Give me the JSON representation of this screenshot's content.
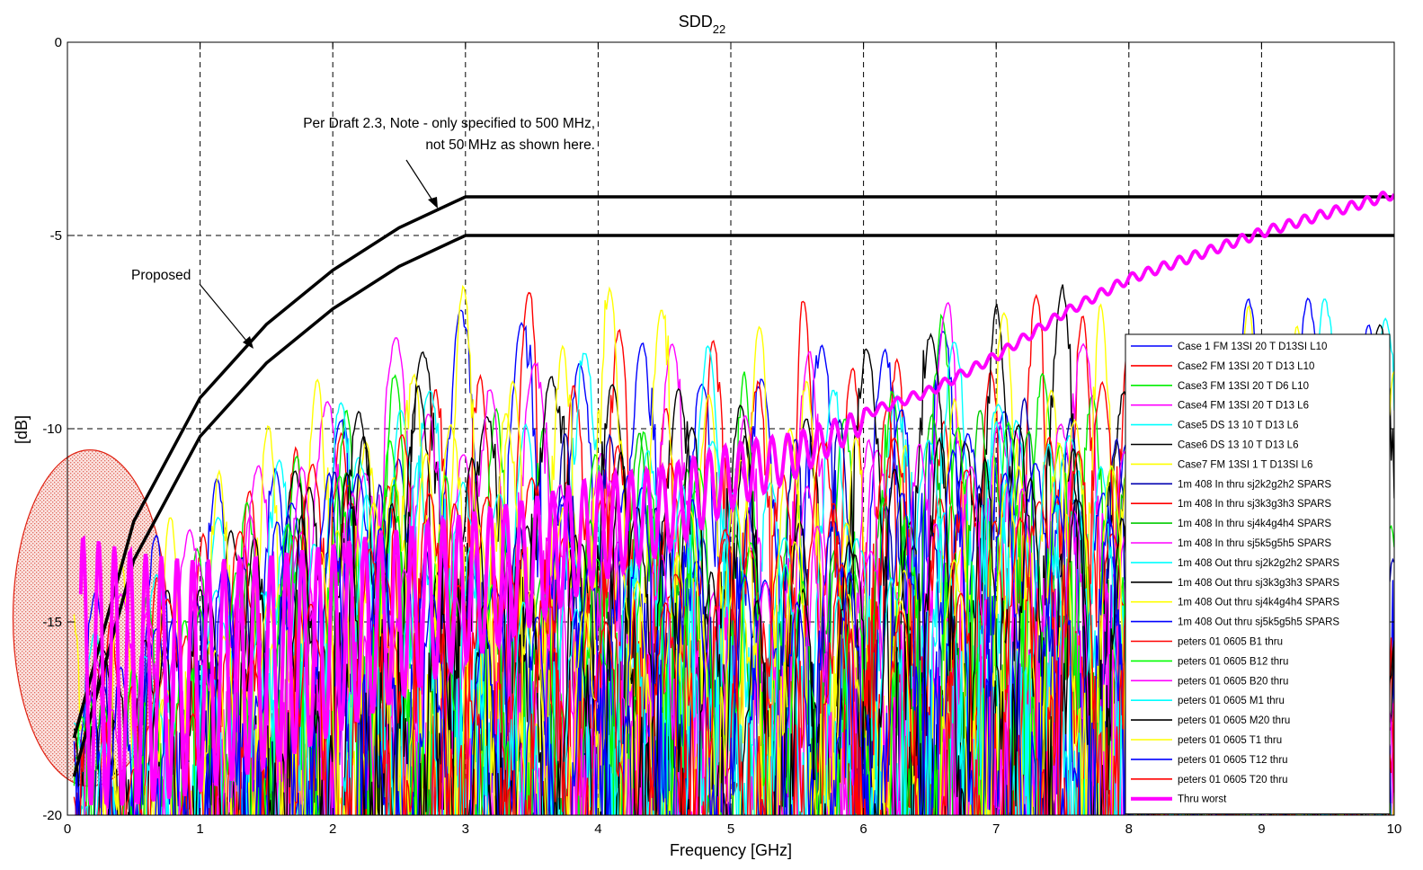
{
  "chart_data": {
    "type": "line",
    "title": "SDD",
    "title_subscript": "22",
    "xlabel": "Frequency [GHz]",
    "ylabel": "[dB]",
    "xlim": [
      0,
      10
    ],
    "ylim": [
      -20,
      0
    ],
    "xticks": [
      "0",
      "1",
      "2",
      "3",
      "4",
      "5",
      "6",
      "7",
      "8",
      "9",
      "10"
    ],
    "yticks": [
      "0",
      "-5",
      "-10",
      "-15",
      "-20"
    ],
    "grid": true,
    "legend_position": "bottom-right",
    "annotations": {
      "draft_note_line1": "Per Draft 2.3, Note - only specified to 500 MHz,",
      "draft_note_line2": "not 50 MHz as shown here.",
      "proposed": "Proposed"
    },
    "limit_lines": [
      {
        "label": "Per Draft 2.3",
        "color": "#000000",
        "points": [
          [
            0.05,
            -18.0
          ],
          [
            0.5,
            -12.4
          ],
          [
            1.0,
            -9.2
          ],
          [
            1.5,
            -7.3
          ],
          [
            2.0,
            -5.9
          ],
          [
            2.5,
            -4.8
          ],
          [
            3.0,
            -4.0
          ],
          [
            10.0,
            -4.0
          ]
        ]
      },
      {
        "label": "Proposed",
        "color": "#000000",
        "points": [
          [
            0.05,
            -19.0
          ],
          [
            0.5,
            -13.4
          ],
          [
            1.0,
            -10.2
          ],
          [
            1.5,
            -8.3
          ],
          [
            2.0,
            -6.9
          ],
          [
            2.5,
            -5.8
          ],
          [
            3.0,
            -5.0
          ],
          [
            10.0,
            -5.0
          ]
        ]
      }
    ],
    "highlight_region": {
      "center": [
        0.17,
        -14.9
      ],
      "radius": [
        0.58,
        4.35
      ],
      "color": "#e02010"
    },
    "series": [
      {
        "name": "Case 1  FM 13SI 20 T D13SI L10",
        "color": "#0000ff",
        "peaks": [
          [
            1.5,
            -10.1
          ],
          [
            2.1,
            -8.9
          ],
          [
            3.03,
            -5.9
          ],
          [
            3.53,
            -5.2
          ],
          [
            4.53,
            -6.0
          ],
          [
            5.03,
            -5.9
          ],
          [
            5.53,
            -6.0
          ],
          [
            6.33,
            -6.0
          ],
          [
            9.0,
            -6.1
          ]
        ]
      },
      {
        "name": "Case2 FM 13SI 20 T D13 L10",
        "color": "#ff0000",
        "peaks": [
          [
            2.0,
            -9.6
          ],
          [
            2.95,
            -6.6
          ],
          [
            3.52,
            -5.6
          ],
          [
            4.05,
            -6.3
          ],
          [
            5.02,
            -6.1
          ],
          [
            5.52,
            -6.1
          ],
          [
            6.05,
            -6.4
          ],
          [
            7.2,
            -6.4
          ]
        ]
      },
      {
        "name": "Case3 FM 13SI 20 T D6 L10",
        "color": "#00ee00",
        "peaks": [
          [
            2.45,
            -8.4
          ],
          [
            3.4,
            -7.6
          ],
          [
            4.2,
            -8.5
          ],
          [
            5.1,
            -8.5
          ],
          [
            6.1,
            -7.1
          ],
          [
            6.55,
            -6.4
          ],
          [
            7.3,
            -8.5
          ]
        ]
      },
      {
        "name": "Case4 FM 13SI 20 T D13 L6",
        "color": "#ff00ff",
        "peaks": [
          [
            2.55,
            -7.4
          ],
          [
            3.6,
            -7.5
          ],
          [
            4.6,
            -7.3
          ],
          [
            5.6,
            -7.9
          ],
          [
            6.65,
            -6.5
          ],
          [
            7.45,
            -7.5
          ]
        ]
      },
      {
        "name": "Case5 DS 13 10 T D13 L6",
        "color": "#00ffff",
        "peaks": [
          [
            2.35,
            -8.4
          ],
          [
            3.81,
            -7.0
          ],
          [
            4.81,
            -7.6
          ],
          [
            5.81,
            -8.6
          ],
          [
            6.4,
            -6.3
          ],
          [
            9.5,
            -6.5
          ]
        ]
      },
      {
        "name": "Case6 DS 13 10 T D13 L6",
        "color": "#000000",
        "peaks": [
          [
            2.9,
            -7.3
          ],
          [
            3.38,
            -6.4
          ],
          [
            3.81,
            -5.7
          ],
          [
            4.81,
            -7.3
          ],
          [
            5.95,
            -6.5
          ],
          [
            6.45,
            -6.5
          ],
          [
            7.0,
            -6.7
          ],
          [
            7.5,
            -6.2
          ],
          [
            9.55,
            -6.8
          ]
        ]
      },
      {
        "name": "Case7 FM 13SI 1 T D13SI L6",
        "color": "#ffff00",
        "peaks": [
          [
            2.05,
            -8.2
          ],
          [
            2.5,
            -6.7
          ],
          [
            2.95,
            -6.0
          ],
          [
            4.02,
            -5.1
          ],
          [
            4.55,
            -5.7
          ],
          [
            5.25,
            -6.9
          ],
          [
            7.2,
            -6.0
          ],
          [
            7.78,
            -6.7
          ],
          [
            8.9,
            -6.8
          ]
        ]
      },
      {
        "name": "1m 408 In thru sj2k2g2h2 SPARS",
        "color": "#0000b0",
        "peaks": [
          [
            2.2,
            -10.5
          ],
          [
            3.9,
            -8.9
          ],
          [
            5.7,
            -8.8
          ],
          [
            7.2,
            -9.2
          ]
        ]
      },
      {
        "name": "1m 408 In thru sj3k3g3h3 SPARS",
        "color": "#ff0000",
        "peaks": [
          [
            2.6,
            -9.9
          ],
          [
            4.3,
            -9.3
          ],
          [
            6.2,
            -9.3
          ],
          [
            7.6,
            -8.5
          ]
        ]
      },
      {
        "name": "1m 408 In thru sj4k4g4h4 SPARS",
        "color": "#00cc00",
        "peaks": [
          [
            2.3,
            -10.5
          ],
          [
            4.4,
            -9.5
          ],
          [
            6.6,
            -9.1
          ]
        ]
      },
      {
        "name": "1m 408 In thru sj5k5g5h5 SPARS",
        "color": "#ff00ff",
        "peaks": [
          [
            3.1,
            -8.4
          ],
          [
            5.2,
            -9.1
          ],
          [
            7.1,
            -9.3
          ]
        ]
      },
      {
        "name": "1m 408 Out thru sj2k2g2h2 SPARS",
        "color": "#00ffff",
        "peaks": [
          [
            2.8,
            -8.8
          ],
          [
            4.7,
            -9.3
          ],
          [
            6.7,
            -8.9
          ]
        ]
      },
      {
        "name": "1m 408 Out thru sj3k3g3h3 SPARS",
        "color": "#000000",
        "peaks": [
          [
            2.7,
            -8.7
          ],
          [
            4.9,
            -8.8
          ],
          [
            6.9,
            -9.5
          ]
        ]
      },
      {
        "name": "1m 408 Out thru sj4k4g4h4 SPARS",
        "color": "#ffff00",
        "peaks": [
          [
            3.2,
            -8.9
          ],
          [
            5.4,
            -9.7
          ],
          [
            7.4,
            -9.5
          ]
        ]
      },
      {
        "name": "1m 408 Out thru sj5k5g5h5 SPARS",
        "color": "#0000ff",
        "peaks": [
          [
            2.1,
            -10.6
          ],
          [
            4.0,
            -9.9
          ],
          [
            6.3,
            -9.4
          ]
        ]
      },
      {
        "name": "peters 01 0605 B1 thru",
        "color": "#ff0000",
        "peaks": [
          [
            1.85,
            -10.9
          ],
          [
            3.7,
            -9.8
          ],
          [
            5.8,
            -9.6
          ]
        ]
      },
      {
        "name": "peters 01 0605 B12 thru",
        "color": "#00ff00",
        "peaks": [
          [
            2.4,
            -10.1
          ],
          [
            4.6,
            -10.1
          ],
          [
            6.8,
            -9.4
          ]
        ]
      },
      {
        "name": "peters 01 0605 B20 thru",
        "color": "#ff00ff",
        "peaks": [
          [
            1.95,
            -10.4
          ],
          [
            3.9,
            -10.2
          ],
          [
            6.1,
            -9.9
          ]
        ]
      },
      {
        "name": "peters 01 0605 M1 thru",
        "color": "#00ffff",
        "peaks": [
          [
            2.6,
            -10.6
          ],
          [
            4.8,
            -10.4
          ],
          [
            7.0,
            -9.8
          ]
        ]
      },
      {
        "name": "peters 01 0605 M20 thru",
        "color": "#000000",
        "peaks": [
          [
            2.25,
            -10.7
          ],
          [
            4.2,
            -10.4
          ],
          [
            6.4,
            -10.0
          ]
        ]
      },
      {
        "name": "peters 01 0605 T1 thru",
        "color": "#ffff00",
        "peaks": [
          [
            2.75,
            -10.5
          ],
          [
            5.0,
            -10.3
          ],
          [
            7.3,
            -10.1
          ]
        ]
      },
      {
        "name": "peters 01 0605 T12 thru",
        "color": "#0000ff",
        "peaks": [
          [
            2.05,
            -10.9
          ],
          [
            4.5,
            -10.5
          ],
          [
            6.5,
            -10.3
          ]
        ]
      },
      {
        "name": "peters 01 0605 T20 thru",
        "color": "#ff0000",
        "peaks": [
          [
            3.0,
            -10.8
          ],
          [
            5.3,
            -10.6
          ],
          [
            7.5,
            -10.4
          ]
        ]
      },
      {
        "name": "Thru worst",
        "color": "#ff00ff",
        "bold": true,
        "x": [
          0.15,
          0.4,
          0.7,
          1.0,
          1.5,
          2.0,
          2.5,
          3.0,
          3.5,
          4.0,
          4.5,
          5.0,
          5.5,
          6.0,
          6.5,
          7.0,
          7.5,
          8.0,
          8.5,
          9.0,
          9.5,
          10.0
        ],
        "y": [
          -12.8,
          -13.1,
          -13.3,
          -13.4,
          -13.3,
          -13.0,
          -12.6,
          -12.2,
          -11.8,
          -11.2,
          -11.0,
          -10.4,
          -10.1,
          -9.5,
          -8.9,
          -8.0,
          -6.9,
          -6.0,
          -5.4,
          -4.8,
          -4.3,
          -3.8
        ]
      }
    ]
  }
}
